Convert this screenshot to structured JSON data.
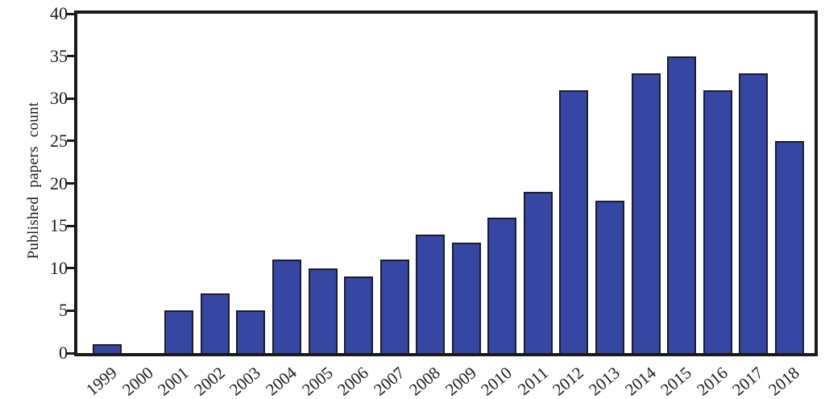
{
  "chart_data": {
    "type": "bar",
    "title": "",
    "xlabel": "",
    "ylabel": "Published papers count",
    "categories": [
      "1999",
      "2000",
      "2001",
      "2002",
      "2003",
      "2004",
      "2005",
      "2006",
      "2007",
      "2008",
      "2009",
      "2010",
      "2011",
      "2012",
      "2013",
      "2014",
      "2015",
      "2016",
      "2017",
      "2018"
    ],
    "values": [
      1,
      0,
      5,
      7,
      5,
      11,
      10,
      9,
      11,
      14,
      13,
      16,
      19,
      31,
      18,
      33,
      35,
      31,
      33,
      25
    ],
    "ylim": [
      0,
      40
    ],
    "ytick_step": 5,
    "grid": false,
    "legend": "none",
    "bar_fill_color": "#3547a3",
    "bar_edge_color": "#1c1c2e",
    "axis_color": "#1a1a1a",
    "text_color": "#1a1a1a"
  }
}
